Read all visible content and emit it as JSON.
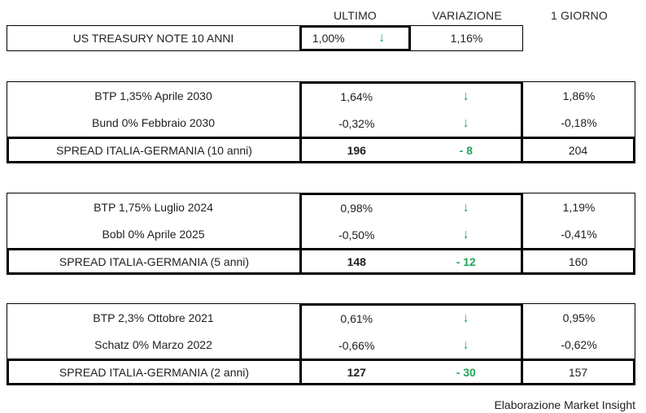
{
  "header": {
    "columns": [
      "ULTIMO",
      "VARIAZIONE",
      "1 GIORNO"
    ]
  },
  "icons": {
    "down_arrow": "↓"
  },
  "colors": {
    "accent_green": "#23A45C",
    "text": "#1f1f1f",
    "border": "#000000"
  },
  "tables": [
    {
      "rows": [
        {
          "label": "US TREASURY NOTE 10 ANNI",
          "ultimo": "1,00%",
          "variazione": "down-arrow",
          "giorno": "1,16%"
        }
      ]
    },
    {
      "rows": [
        {
          "label": "BTP 1,35% Aprile 2030",
          "ultimo": "1,64%",
          "variazione": "down-arrow",
          "giorno": "1,86%"
        },
        {
          "label": "Bund 0% Febbraio 2030",
          "ultimo": "-0,32%",
          "variazione": "down-arrow",
          "giorno": "-0,18%"
        }
      ],
      "spread": {
        "label": "SPREAD ITALIA-GERMANIA (10 anni)",
        "ultimo": "196",
        "variazione": "- 8",
        "giorno": "204"
      }
    },
    {
      "rows": [
        {
          "label": "BTP 1,75% Luglio 2024",
          "ultimo": "0,98%",
          "variazione": "down-arrow",
          "giorno": "1,19%"
        },
        {
          "label": "Bobl 0% Aprile 2025",
          "ultimo": "-0,50%",
          "variazione": "down-arrow",
          "giorno": "-0,41%"
        }
      ],
      "spread": {
        "label": "SPREAD ITALIA-GERMANIA (5 anni)",
        "ultimo": "148",
        "variazione": "- 12",
        "giorno": "160"
      }
    },
    {
      "rows": [
        {
          "label": "BTP 2,3% Ottobre 2021",
          "ultimo": "0,61%",
          "variazione": "down-arrow",
          "giorno": "0,95%"
        },
        {
          "label": "Schatz 0% Marzo 2022",
          "ultimo": "-0,66%",
          "variazione": "down-arrow",
          "giorno": "-0,62%"
        }
      ],
      "spread": {
        "label": "SPREAD ITALIA-GERMANIA (2 anni)",
        "ultimo": "127",
        "variazione": "- 30",
        "giorno": "157"
      }
    }
  ],
  "footer": {
    "credit": "Elaborazione Market Insight"
  }
}
